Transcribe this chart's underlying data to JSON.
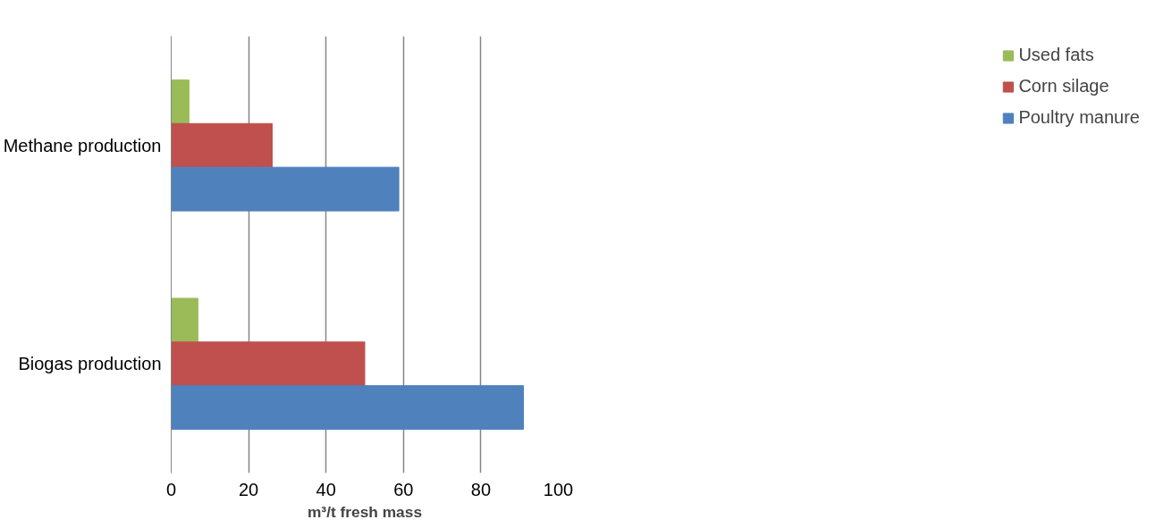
{
  "chart_data": {
    "type": "bar",
    "orientation": "horizontal",
    "categories": [
      "Methane production",
      "Biogas production"
    ],
    "series": [
      {
        "name": "Used fats",
        "color": "#9bbb59",
        "values": [
          4.6,
          6.9
        ]
      },
      {
        "name": "Corn silage",
        "color": "#c0504d",
        "values": [
          26.1,
          50
        ]
      },
      {
        "name": "Poultry manure",
        "color": "#4f81bd",
        "values": [
          58.8,
          91
        ]
      }
    ],
    "xlabel": "m³/t fresh mass",
    "xlim": [
      0,
      100
    ],
    "xticks": [
      0,
      20,
      40,
      60,
      80,
      100
    ],
    "grid": "x",
    "legend": "right"
  }
}
